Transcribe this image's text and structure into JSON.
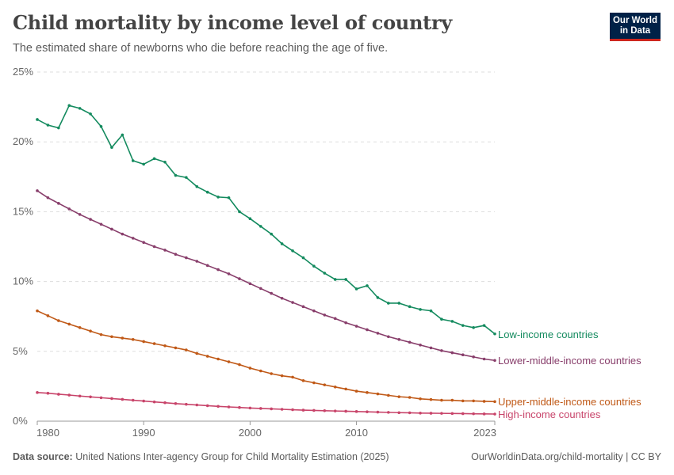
{
  "header": {
    "title": "Child mortality by income level of country",
    "subtitle": "The estimated share of newborns who die before reaching the age of five."
  },
  "logo": {
    "line1": "Our World",
    "line2": "in Data"
  },
  "footer": {
    "source_label": "Data source:",
    "source": "United Nations Inter-agency Group for Child Mortality Estimation (2025)",
    "link": "OurWorldinData.org/child-mortality | CC BY"
  },
  "chart_data": {
    "type": "line",
    "title": "Child mortality by income level of country",
    "xlim": [
      1980,
      2023
    ],
    "ylim": [
      0,
      25
    ],
    "x_ticks": [
      1980,
      1990,
      2000,
      2010,
      2023
    ],
    "y_ticks": [
      0,
      5,
      10,
      15,
      20,
      25
    ],
    "y_tick_labels": [
      "0%",
      "5%",
      "10%",
      "15%",
      "20%",
      "25%"
    ],
    "grid": "horizontal dashed",
    "legend": "inline labels at line ends (right)",
    "x": [
      1980,
      1981,
      1982,
      1983,
      1984,
      1985,
      1986,
      1987,
      1988,
      1989,
      1990,
      1991,
      1992,
      1993,
      1994,
      1995,
      1996,
      1997,
      1998,
      1999,
      2000,
      2001,
      2002,
      2003,
      2004,
      2005,
      2006,
      2007,
      2008,
      2009,
      2010,
      2011,
      2012,
      2013,
      2014,
      2015,
      2016,
      2017,
      2018,
      2019,
      2020,
      2021,
      2022,
      2023
    ],
    "series": [
      {
        "name": "Low-income countries",
        "color": "#138a5e",
        "values": [
          21.6,
          21.2,
          21.0,
          22.6,
          22.4,
          22.0,
          21.1,
          19.6,
          20.5,
          18.65,
          18.4,
          18.8,
          18.55,
          17.6,
          17.45,
          16.8,
          16.4,
          16.05,
          16.0,
          15.0,
          14.5,
          13.95,
          13.4,
          12.7,
          12.2,
          11.7,
          11.1,
          10.6,
          10.15,
          10.15,
          9.47,
          9.7,
          8.85,
          8.45,
          8.45,
          8.2,
          8.0,
          7.9,
          7.3,
          7.15,
          6.85,
          6.7,
          6.85,
          6.25
        ]
      },
      {
        "name": "Lower-middle-income countries",
        "color": "#883e6b",
        "values": [
          16.5,
          16.0,
          15.6,
          15.2,
          14.8,
          14.45,
          14.1,
          13.75,
          13.4,
          13.1,
          12.8,
          12.5,
          12.25,
          11.95,
          11.7,
          11.45,
          11.15,
          10.85,
          10.55,
          10.2,
          9.85,
          9.5,
          9.15,
          8.8,
          8.5,
          8.2,
          7.9,
          7.6,
          7.35,
          7.05,
          6.8,
          6.55,
          6.3,
          6.05,
          5.85,
          5.65,
          5.45,
          5.25,
          5.05,
          4.9,
          4.75,
          4.6,
          4.45,
          4.35
        ]
      },
      {
        "name": "Upper-middle-income countries",
        "color": "#c05917",
        "values": [
          7.9,
          7.55,
          7.2,
          6.95,
          6.7,
          6.45,
          6.2,
          6.05,
          5.95,
          5.85,
          5.7,
          5.55,
          5.4,
          5.25,
          5.1,
          4.85,
          4.65,
          4.45,
          4.25,
          4.05,
          3.8,
          3.6,
          3.4,
          3.25,
          3.15,
          2.9,
          2.75,
          2.6,
          2.45,
          2.3,
          2.15,
          2.05,
          1.95,
          1.85,
          1.75,
          1.7,
          1.6,
          1.55,
          1.5,
          1.5,
          1.45,
          1.45,
          1.42,
          1.4
        ]
      },
      {
        "name": "High-income countries",
        "color": "#c8446a",
        "values": [
          2.05,
          2.0,
          1.93,
          1.87,
          1.8,
          1.74,
          1.68,
          1.62,
          1.56,
          1.5,
          1.44,
          1.38,
          1.32,
          1.26,
          1.21,
          1.16,
          1.11,
          1.06,
          1.02,
          0.98,
          0.94,
          0.91,
          0.88,
          0.85,
          0.82,
          0.79,
          0.77,
          0.75,
          0.73,
          0.71,
          0.69,
          0.67,
          0.65,
          0.63,
          0.61,
          0.6,
          0.58,
          0.57,
          0.56,
          0.55,
          0.54,
          0.53,
          0.52,
          0.51
        ]
      }
    ]
  }
}
